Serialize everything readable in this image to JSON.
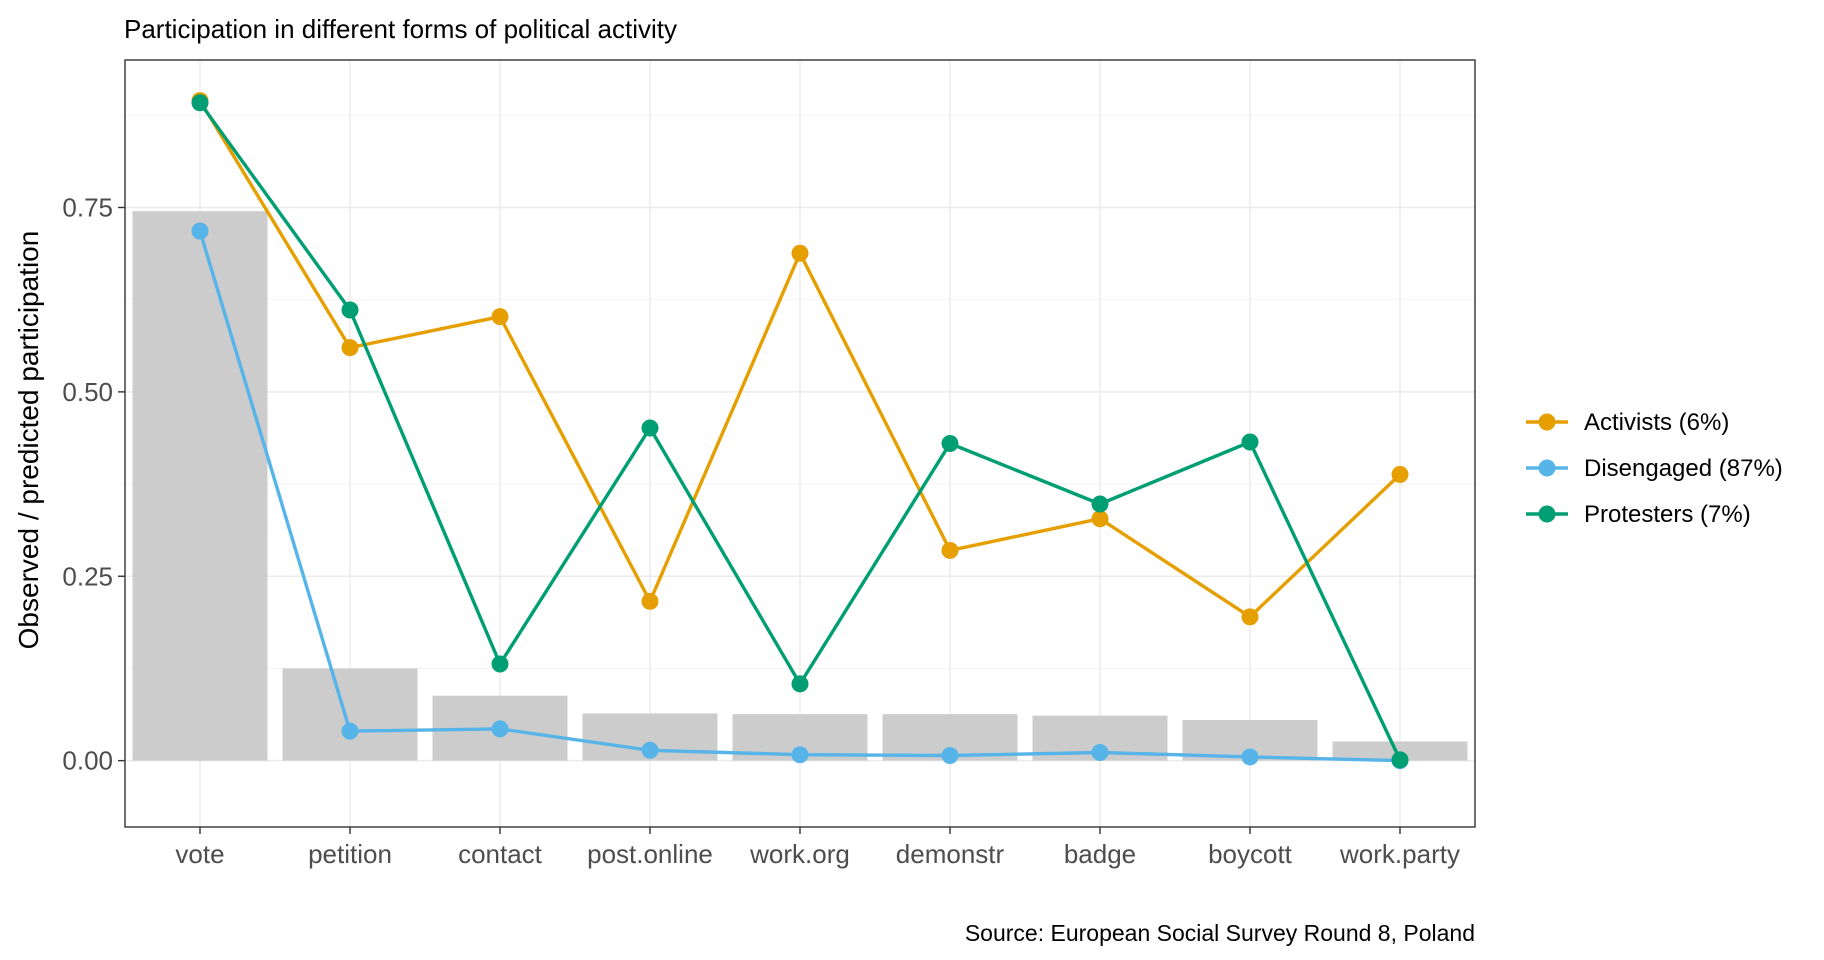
{
  "chart_data": {
    "type": "bar+line",
    "title": "Participation in different forms of political activity",
    "caption": "Source: European Social Survey Round 8, Poland",
    "xlabel": "",
    "ylabel": "Observed / predicted participation",
    "ylim": [
      -0.09,
      0.95
    ],
    "yticks": [
      0.0,
      0.25,
      0.5,
      0.75
    ],
    "ytick_labels": [
      "0.00",
      "0.25",
      "0.50",
      "0.75"
    ],
    "grid": true,
    "legend_position": "right",
    "categories": [
      "vote",
      "petition",
      "contact",
      "post.online",
      "work.org",
      "demonstr",
      "badge",
      "boycott",
      "work.party"
    ],
    "bars": {
      "name": "observed",
      "color": "#cccccc",
      "values": [
        0.745,
        0.125,
        0.088,
        0.064,
        0.063,
        0.063,
        0.061,
        0.055,
        0.026
      ]
    },
    "series": [
      {
        "name": "Activists (6%)",
        "color": "#E69F00",
        "values": [
          0.895,
          0.56,
          0.602,
          0.216,
          0.688,
          0.285,
          0.328,
          0.195,
          0.388
        ]
      },
      {
        "name": "Disengaged (87%)",
        "color": "#56B4E9",
        "values": [
          0.718,
          0.04,
          0.043,
          0.014,
          0.008,
          0.007,
          0.011,
          0.005,
          0.0
        ]
      },
      {
        "name": "Protesters (7%)",
        "color": "#009E73",
        "values": [
          0.892,
          0.611,
          0.131,
          0.451,
          0.104,
          0.43,
          0.348,
          0.432,
          0.001
        ]
      }
    ]
  }
}
